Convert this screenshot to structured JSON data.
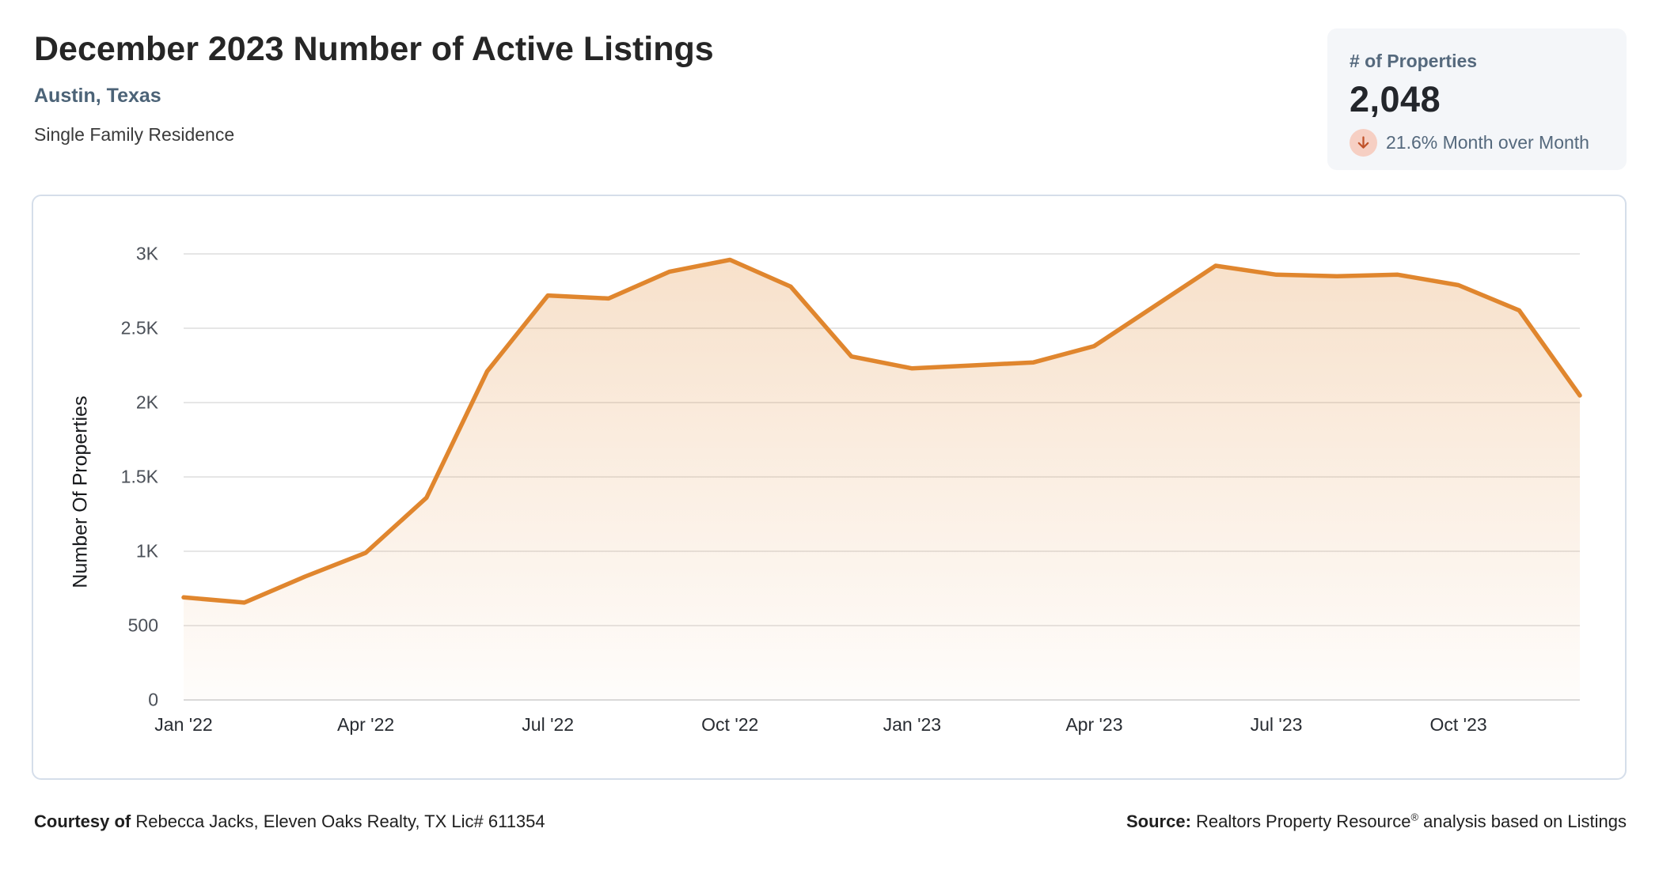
{
  "header": {
    "title": "December 2023 Number of Active Listings",
    "location": "Austin, Texas",
    "property_type": "Single Family Residence"
  },
  "stat_card": {
    "label": "# of Properties",
    "value": "2,048",
    "change_text": "21.6% Month over Month",
    "change_direction": "down",
    "arrow_color": "#c0522a",
    "arrow_bg": "#f6cfc3"
  },
  "chart_data": {
    "type": "area",
    "title": "December 2023 Number of Active Listings",
    "xlabel": "",
    "ylabel": "Number Of Properties",
    "ylim": [
      0,
      3000
    ],
    "grid": true,
    "legend": "none",
    "line_color": "#e0862e",
    "categories": [
      "Jan '22",
      "Feb '22",
      "Mar '22",
      "Apr '22",
      "May '22",
      "Jun '22",
      "Jul '22",
      "Aug '22",
      "Sep '22",
      "Oct '22",
      "Nov '22",
      "Dec '22",
      "Jan '23",
      "Feb '23",
      "Mar '23",
      "Apr '23",
      "May '23",
      "Jun '23",
      "Jul '23",
      "Aug '23",
      "Sep '23",
      "Oct '23",
      "Nov '23",
      "Dec '23"
    ],
    "values": [
      690,
      655,
      830,
      990,
      1360,
      2210,
      2720,
      2700,
      2880,
      2960,
      2780,
      2310,
      2230,
      2250,
      2270,
      2380,
      2650,
      2920,
      2860,
      2850,
      2860,
      2790,
      2620,
      2048
    ],
    "yticks": [
      {
        "label": "0",
        "value": 0
      },
      {
        "label": "500",
        "value": 500
      },
      {
        "label": "1K",
        "value": 1000
      },
      {
        "label": "1.5K",
        "value": 1500
      },
      {
        "label": "2K",
        "value": 2000
      },
      {
        "label": "2.5K",
        "value": 2500
      },
      {
        "label": "3K",
        "value": 3000
      }
    ],
    "xtick_indices": [
      0,
      3,
      6,
      9,
      12,
      15,
      18,
      21
    ]
  },
  "footer": {
    "courtesy_prefix": "Courtesy of",
    "courtesy_text": " Rebecca Jacks, Eleven Oaks Realty, TX Lic# 611354",
    "source_prefix": "Source:",
    "source_name": " Realtors Property Resource",
    "source_reg": "®",
    "source_suffix": " analysis based on Listings"
  }
}
